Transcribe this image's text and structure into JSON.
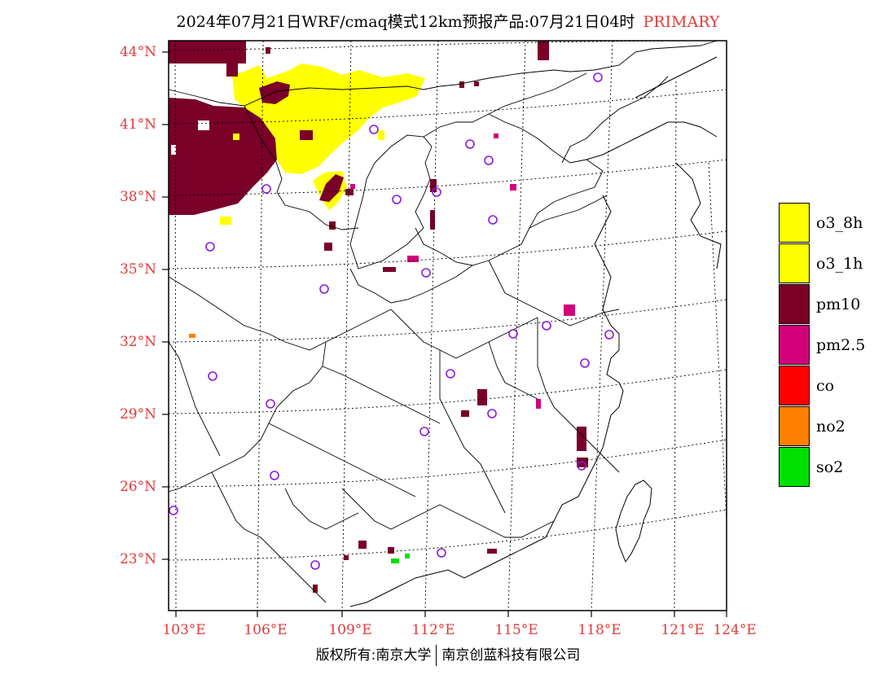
{
  "title": {
    "main": "2024年07月21日WRF/cmaq模式12km预报产品:07月21日04时",
    "tag": "PRIMARY"
  },
  "axes": {
    "lat_labels": [
      "44°N",
      "41°N",
      "38°N",
      "35°N",
      "32°N",
      "29°N",
      "26°N",
      "23°N"
    ],
    "lon_labels": [
      "103°E",
      "106°E",
      "109°E",
      "112°E",
      "115°E",
      "118°E",
      "121°E",
      "124°E"
    ],
    "label_color": "#e03c3c"
  },
  "legend": [
    {
      "label": "o3_8h",
      "color": "#ffff00"
    },
    {
      "label": "o3_1h",
      "color": "#ffff00"
    },
    {
      "label": "pm10",
      "color": "#7a0028"
    },
    {
      "label": "pm2.5",
      "color": "#d2007a"
    },
    {
      "label": "co",
      "color": "#ff0000"
    },
    {
      "label": "no2",
      "color": "#ff7f00"
    },
    {
      "label": "so2",
      "color": "#00e000"
    }
  ],
  "footer": {
    "left": "版权所有:南京大学",
    "right": "南京创蓝科技有限公司"
  },
  "colors": {
    "ozone": "#ffff00",
    "pm10": "#7a0028",
    "pm25": "#d2007a",
    "no2": "#ff7f00",
    "so2": "#00e000",
    "station_marker": "#8a1adb"
  }
}
